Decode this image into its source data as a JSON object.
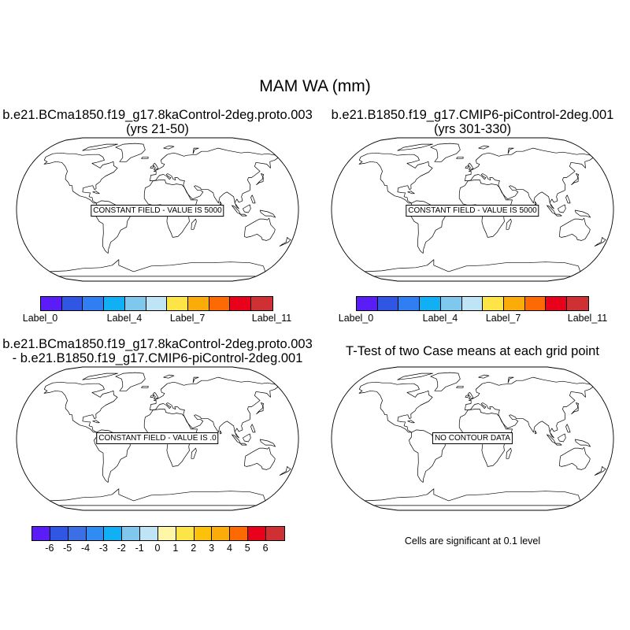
{
  "title": "MAM WA (mm)",
  "panels": [
    {
      "title_line1": "b.e21.BCma1850.f19_g17.8kaControl-2deg.proto.003",
      "title_line2": "(yrs 21-50)",
      "overlay_text": "CONSTANT FIELD - VALUE IS 5000",
      "colorbar": {
        "colors": [
          "#5a1cf7",
          "#3057e3",
          "#2f7ff2",
          "#11aff3",
          "#80c7ee",
          "#bfe4f5",
          "#fde548",
          "#fcac09",
          "#fd6902",
          "#e9001b",
          "#cf3033"
        ],
        "labels": [
          "Label_0",
          "Label_4",
          "Label_7",
          "Label_11"
        ],
        "label_boxes": [
          0,
          4,
          7,
          11
        ]
      }
    },
    {
      "title_line1": "b.e21.B1850.f19_g17.CMIP6-piControl-2deg.001",
      "title_line2": "(yrs 301-330)",
      "overlay_text": "CONSTANT FIELD - VALUE IS 5000",
      "colorbar": {
        "colors": [
          "#5a1cf7",
          "#3057e3",
          "#2f7ff2",
          "#11aff3",
          "#80c7ee",
          "#bfe4f5",
          "#fde548",
          "#fcac09",
          "#fd6902",
          "#e9001b",
          "#cf3033"
        ],
        "labels": [
          "Label_0",
          "Label_4",
          "Label_7",
          "Label_11"
        ],
        "label_boxes": [
          0,
          4,
          7,
          11
        ]
      }
    },
    {
      "title_line1": "b.e21.BCma1850.f19_g17.8kaControl-2deg.proto.003",
      "title_line2": "- b.e21.B1850.f19_g17.CMIP6-piControl-2deg.001",
      "overlay_text": "CONSTANT FIELD - VALUE IS .0",
      "colorbar": {
        "colors": [
          "#5a1cf7",
          "#3057e3",
          "#3a6fe6",
          "#2f8cf2",
          "#11aff3",
          "#80c7ee",
          "#bfe4f5",
          "#fff6a6",
          "#fde548",
          "#fcc20a",
          "#fcac09",
          "#fd6902",
          "#e9001b",
          "#cf3033"
        ],
        "labels": [
          "-6",
          "-5",
          "-4",
          "-3",
          "-2",
          "-1",
          "0",
          "1",
          "2",
          "3",
          "4",
          "5",
          "6"
        ]
      }
    },
    {
      "title_line1": "T-Test of two Case means at each grid point",
      "overlay_text": "NO CONTOUR DATA",
      "note": "Cells are significant at 0.1 level"
    }
  ]
}
